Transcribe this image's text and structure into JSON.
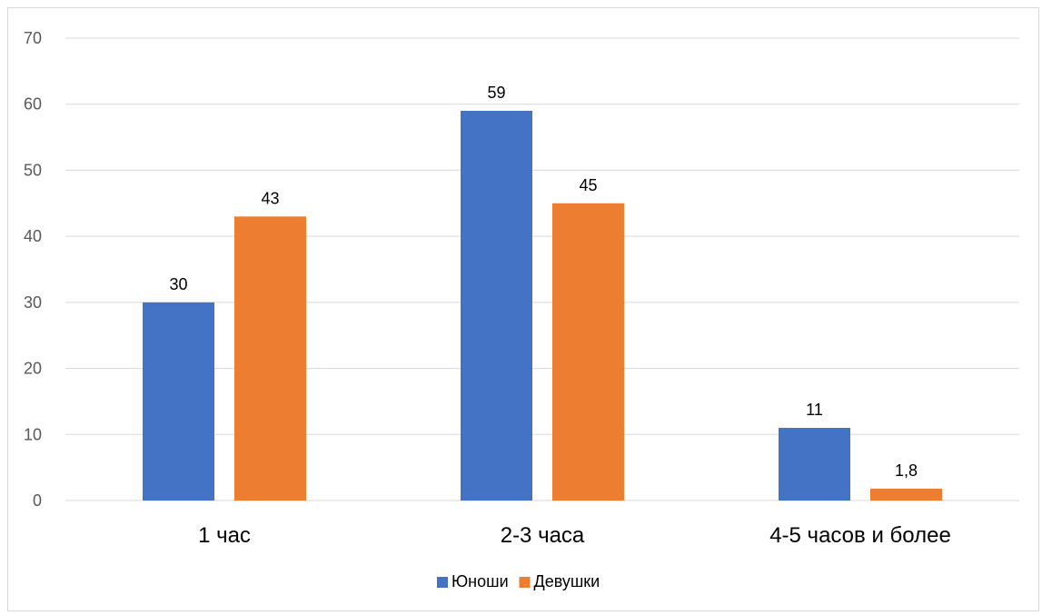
{
  "chart_data": {
    "type": "bar",
    "categories": [
      "1 час",
      "2-3 часа",
      "4-5 часов и более"
    ],
    "series": [
      {
        "name": "Юноши",
        "values": [
          30,
          59,
          11
        ],
        "labels": [
          "30",
          "59",
          "11"
        ],
        "color": "#4472C4"
      },
      {
        "name": "Девушки",
        "values": [
          43,
          45,
          1.8
        ],
        "labels": [
          "43",
          "45",
          "1,8"
        ],
        "color": "#ED7D31"
      }
    ],
    "ylim": [
      0,
      70
    ],
    "yticks": [
      0,
      10,
      20,
      30,
      40,
      50,
      60,
      70
    ],
    "grid": true,
    "legend_position": "bottom",
    "gridline_color": "#d9d9d9"
  }
}
